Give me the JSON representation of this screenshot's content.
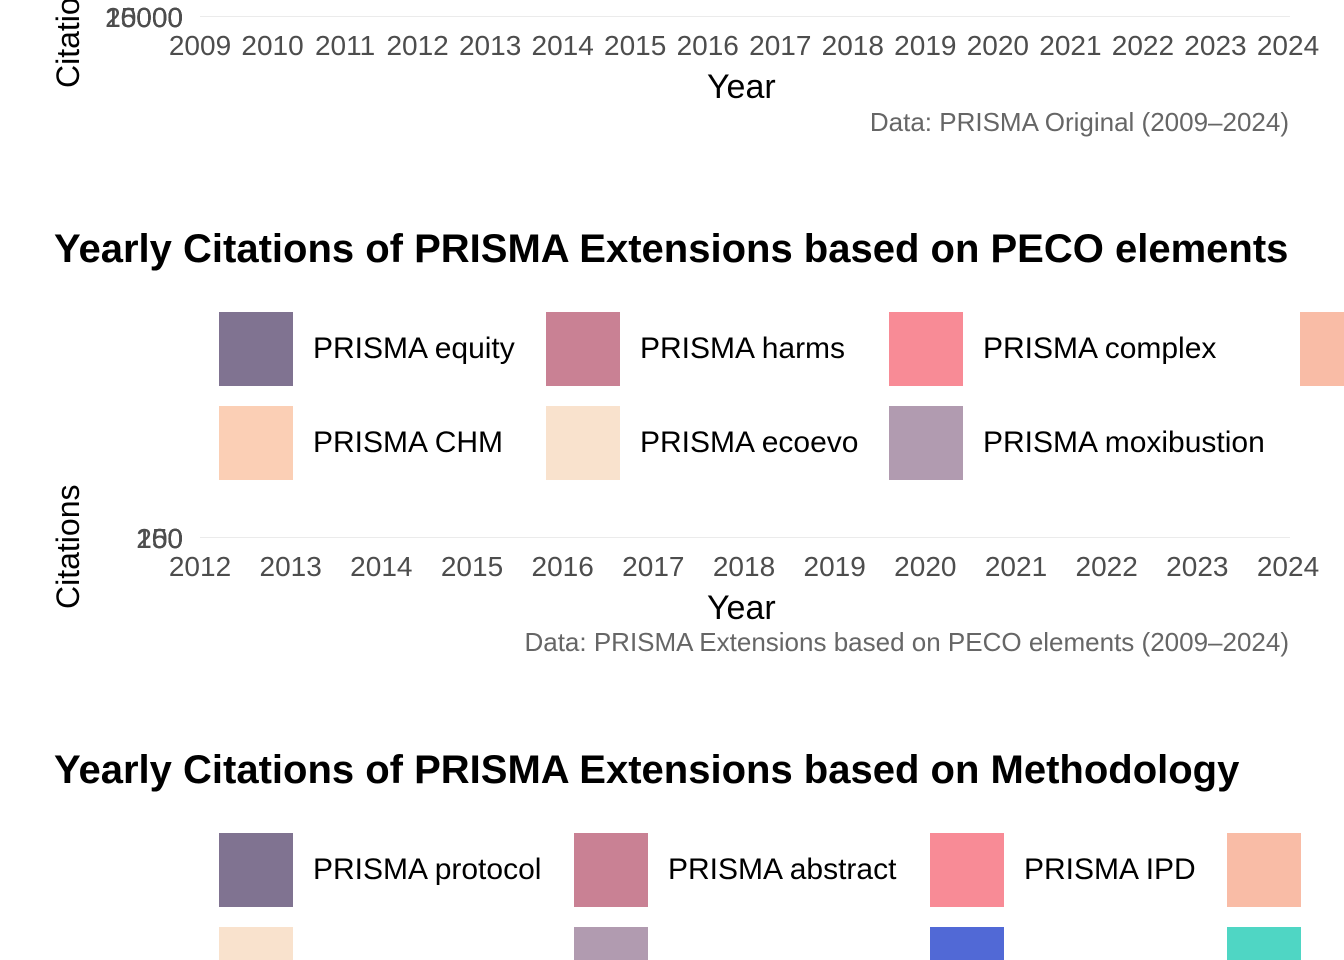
{
  "chart_data": [
    {
      "type": "area",
      "title": "",
      "ylabel": "Citations",
      "xlabel": "Year",
      "caption": "Data: PRISMA Original (2009–2024)",
      "y_ticks": [
        "20000",
        "15000",
        "10000",
        "5000",
        "0"
      ],
      "categories": [
        "2009",
        "2010",
        "2011",
        "2012",
        "2013",
        "2014",
        "2015",
        "2016",
        "2017",
        "2018",
        "2019",
        "2020",
        "2021",
        "2022",
        "2023",
        "2024"
      ],
      "series": [],
      "legend_position": "top",
      "grid": true
    },
    {
      "type": "area",
      "title": "Yearly Citations of PRISMA Extensions based on PECO elements",
      "ylabel": "Citations",
      "xlabel": "Year",
      "caption": "Data: PRISMA Extensions based on PECO elements (2009–2024)",
      "y_ticks": [
        "200",
        "150",
        "100",
        "50",
        "0"
      ],
      "categories": [
        "2012",
        "2013",
        "2014",
        "2015",
        "2016",
        "2017",
        "2018",
        "2019",
        "2020",
        "2021",
        "2022",
        "2023",
        "2024"
      ],
      "series": [
        {
          "name": "PRISMA equity",
          "color": "#807391"
        },
        {
          "name": "PRISMA harms",
          "color": "#c98194"
        },
        {
          "name": "PRISMA complex",
          "color": "#f88b96"
        },
        {
          "name": "",
          "color": "#f9bca6"
        },
        {
          "name": "PRISMA CHM",
          "color": "#fbcfb5"
        },
        {
          "name": "PRISMA ecoevo",
          "color": "#f9e2cd"
        },
        {
          "name": "PRISMA moxibustion",
          "color": "#b19bb0"
        }
      ],
      "legend_position": "top",
      "grid": true
    },
    {
      "type": "area",
      "title": "Yearly Citations of PRISMA Extensions based on Methodology",
      "series": [
        {
          "name": "PRISMA protocol",
          "color": "#807391"
        },
        {
          "name": "PRISMA abstract",
          "color": "#c98194"
        },
        {
          "name": "PRISMA IPD",
          "color": "#f88b96"
        },
        {
          "name": "",
          "color": "#f9bca6"
        },
        {
          "name": "",
          "color": "#f9e2cd"
        },
        {
          "name": "",
          "color": "#b19bb0"
        },
        {
          "name": "",
          "color": "#5169d6"
        },
        {
          "name": "",
          "color": "#4fd6c4"
        }
      ],
      "legend_position": "top",
      "grid": true
    }
  ]
}
